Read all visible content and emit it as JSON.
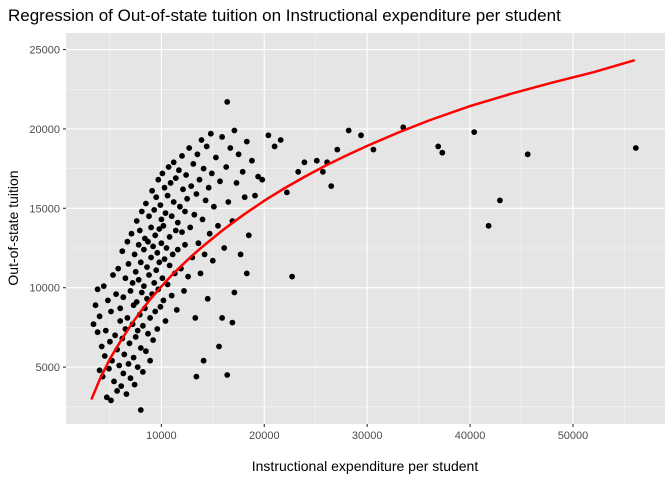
{
  "chart_data": {
    "type": "scatter",
    "title": "Regression of Out-of-state tuition on Instructional expenditure per student",
    "xlabel": "Instructional expenditure per student",
    "ylabel": "Out-of-state tuition",
    "xlim": [
      731,
      58941
    ],
    "ylim": [
      1416,
      26041
    ],
    "x_ticks": [
      10000,
      20000,
      30000,
      40000,
      50000
    ],
    "x_tick_labels": [
      "10000",
      "20000",
      "30000",
      "40000",
      "50000"
    ],
    "y_ticks": [
      5000,
      10000,
      15000,
      20000,
      25000
    ],
    "y_tick_labels": [
      "5000",
      "10000",
      "15000",
      "20000",
      "25000"
    ],
    "grid": true,
    "legend": "none",
    "colors": {
      "panel": "#e5e5e5",
      "grid_major": "#ffffff",
      "points": "#000000",
      "fit_line": "#ff0000"
    },
    "fit_line": {
      "x": [
        3200,
        4000,
        5000,
        6000,
        7000,
        8000,
        9000,
        10000,
        11000,
        12000,
        13000,
        14000,
        16000,
        18000,
        20000,
        22000,
        24000,
        26000,
        28000,
        30000,
        33000,
        36000,
        40000,
        44000,
        48000,
        52000,
        56000
      ],
      "y": [
        2960,
        4200,
        5520,
        6590,
        7610,
        8520,
        9330,
        10080,
        10780,
        11420,
        12020,
        12590,
        13640,
        14600,
        15480,
        16280,
        17010,
        17700,
        18330,
        18930,
        19770,
        20530,
        21440,
        22220,
        22920,
        23570,
        24330
      ]
    },
    "series": [
      {
        "points": [
          [
            3400,
            7700
          ],
          [
            3600,
            8900
          ],
          [
            3800,
            7200
          ],
          [
            3800,
            9900
          ],
          [
            4000,
            4800
          ],
          [
            4000,
            8200
          ],
          [
            4200,
            6300
          ],
          [
            4300,
            4400
          ],
          [
            4400,
            10100
          ],
          [
            4500,
            5700
          ],
          [
            4600,
            7300
          ],
          [
            4700,
            3100
          ],
          [
            4800,
            9200
          ],
          [
            4900,
            4900
          ],
          [
            5000,
            6600
          ],
          [
            5100,
            2900
          ],
          [
            5100,
            8500
          ],
          [
            5200,
            5400
          ],
          [
            5300,
            10800
          ],
          [
            5400,
            4100
          ],
          [
            5500,
            7000
          ],
          [
            5600,
            9600
          ],
          [
            5700,
            3500
          ],
          [
            5700,
            6100
          ],
          [
            5800,
            11200
          ],
          [
            5900,
            5100
          ],
          [
            6000,
            7900
          ],
          [
            6000,
            8700
          ],
          [
            6100,
            3800
          ],
          [
            6200,
            6800
          ],
          [
            6200,
            12300
          ],
          [
            6300,
            4600
          ],
          [
            6300,
            9400
          ],
          [
            6400,
            5800
          ],
          [
            6500,
            10600
          ],
          [
            6500,
            7400
          ],
          [
            6600,
            3300
          ],
          [
            6700,
            8100
          ],
          [
            6700,
            12900
          ],
          [
            6800,
            5200
          ],
          [
            6800,
            11500
          ],
          [
            6900,
            6500
          ],
          [
            7000,
            9800
          ],
          [
            7000,
            4300
          ],
          [
            7100,
            13400
          ],
          [
            7200,
            7700
          ],
          [
            7200,
            10300
          ],
          [
            7300,
            5600
          ],
          [
            7300,
            8900
          ],
          [
            7400,
            12100
          ],
          [
            7400,
            3900
          ],
          [
            7500,
            6900
          ],
          [
            7500,
            11000
          ],
          [
            7600,
            14200
          ],
          [
            7600,
            9100
          ],
          [
            7700,
            5000
          ],
          [
            7700,
            7300
          ],
          [
            7800,
            12700
          ],
          [
            7800,
            10500
          ],
          [
            7900,
            8300
          ],
          [
            7900,
            13600
          ],
          [
            8000,
            6200
          ],
          [
            8000,
            2300
          ],
          [
            8000,
            11600
          ],
          [
            8100,
            9700
          ],
          [
            8100,
            14800
          ],
          [
            8200,
            7600
          ],
          [
            8200,
            4700
          ],
          [
            8300,
            12400
          ],
          [
            8300,
            10100
          ],
          [
            8400,
            8700
          ],
          [
            8400,
            13100
          ],
          [
            8500,
            6000
          ],
          [
            8500,
            15300
          ],
          [
            8600,
            11300
          ],
          [
            8600,
            9300
          ],
          [
            8700,
            7100
          ],
          [
            8700,
            12900
          ],
          [
            8800,
            10800
          ],
          [
            8800,
            14500
          ],
          [
            8900,
            5400
          ],
          [
            8900,
            8100
          ],
          [
            9000,
            13800
          ],
          [
            9000,
            11900
          ],
          [
            9100,
            9600
          ],
          [
            9100,
            16100
          ],
          [
            9200,
            6700
          ],
          [
            9200,
            12600
          ],
          [
            9300,
            10300
          ],
          [
            9300,
            14900
          ],
          [
            9400,
            8500
          ],
          [
            9400,
            13300
          ],
          [
            9500,
            11100
          ],
          [
            9500,
            15700
          ],
          [
            9600,
            7400
          ],
          [
            9600,
            12200
          ],
          [
            9700,
            9900
          ],
          [
            9700,
            16800
          ],
          [
            9800,
            13700
          ],
          [
            9800,
            11600
          ],
          [
            9900,
            8800
          ],
          [
            9900,
            15200
          ],
          [
            10000,
            12800
          ],
          [
            10000,
            14300
          ],
          [
            10100,
            10600
          ],
          [
            10100,
            17200
          ],
          [
            10200,
            9200
          ],
          [
            10200,
            13900
          ],
          [
            10300,
            11800
          ],
          [
            10300,
            16300
          ],
          [
            10400,
            7900
          ],
          [
            10400,
            14700
          ],
          [
            10500,
            12500
          ],
          [
            10600,
            15800
          ],
          [
            10600,
            10200
          ],
          [
            10700,
            17600
          ],
          [
            10800,
            13200
          ],
          [
            10800,
            11400
          ],
          [
            10900,
            16600
          ],
          [
            11000,
            9500
          ],
          [
            11000,
            14500
          ],
          [
            11100,
            12100
          ],
          [
            11200,
            17900
          ],
          [
            11200,
            15400
          ],
          [
            11300,
            10900
          ],
          [
            11400,
            13600
          ],
          [
            11400,
            16900
          ],
          [
            11500,
            8600
          ],
          [
            11600,
            14100
          ],
          [
            11600,
            12400
          ],
          [
            11700,
            17400
          ],
          [
            11800,
            15100
          ],
          [
            11900,
            11200
          ],
          [
            12000,
            13500
          ],
          [
            12000,
            18300
          ],
          [
            12100,
            16200
          ],
          [
            12200,
            9800
          ],
          [
            12300,
            14800
          ],
          [
            12300,
            12700
          ],
          [
            12400,
            17100
          ],
          [
            12500,
            15600
          ],
          [
            12600,
            10700
          ],
          [
            12700,
            18800
          ],
          [
            12800,
            13800
          ],
          [
            12900,
            16400
          ],
          [
            13000,
            11900
          ],
          [
            13100,
            17800
          ],
          [
            13200,
            14600
          ],
          [
            13300,
            8100
          ],
          [
            13400,
            15900
          ],
          [
            13500,
            18400
          ],
          [
            13600,
            12800
          ],
          [
            13700,
            16800
          ],
          [
            13800,
            10900
          ],
          [
            13900,
            19300
          ],
          [
            14000,
            14300
          ],
          [
            14100,
            17500
          ],
          [
            14200,
            12100
          ],
          [
            14300,
            15500
          ],
          [
            14400,
            18900
          ],
          [
            14500,
            9300
          ],
          [
            14600,
            16300
          ],
          [
            14700,
            13400
          ],
          [
            14800,
            19700
          ],
          [
            14900,
            17200
          ],
          [
            15000,
            11700
          ],
          [
            15100,
            15100
          ],
          [
            15300,
            18200
          ],
          [
            15500,
            13900
          ],
          [
            15700,
            16700
          ],
          [
            15900,
            19500
          ],
          [
            16100,
            12500
          ],
          [
            16300,
            17600
          ],
          [
            16400,
            21700
          ],
          [
            16500,
            15400
          ],
          [
            16700,
            18800
          ],
          [
            16900,
            14200
          ],
          [
            17100,
            19900
          ],
          [
            17300,
            16600
          ],
          [
            17500,
            18400
          ],
          [
            17700,
            12100
          ],
          [
            17900,
            17300
          ],
          [
            18100,
            15700
          ],
          [
            18300,
            19200
          ],
          [
            18500,
            13300
          ],
          [
            18800,
            18000
          ],
          [
            19100,
            15800
          ],
          [
            19400,
            17000
          ],
          [
            16400,
            4500
          ],
          [
            15600,
            6300
          ],
          [
            14100,
            5400
          ],
          [
            13400,
            4400
          ],
          [
            15900,
            8100
          ],
          [
            17100,
            9700
          ],
          [
            18300,
            10900
          ],
          [
            16900,
            7800
          ],
          [
            19800,
            16800
          ],
          [
            20400,
            19600
          ],
          [
            21000,
            18900
          ],
          [
            21600,
            19300
          ],
          [
            22200,
            16000
          ],
          [
            22700,
            10700
          ],
          [
            23300,
            17300
          ],
          [
            23900,
            17900
          ],
          [
            25100,
            18000
          ],
          [
            25700,
            17300
          ],
          [
            26100,
            17900
          ],
          [
            26500,
            16400
          ],
          [
            27100,
            18700
          ],
          [
            28200,
            19900
          ],
          [
            29400,
            19600
          ],
          [
            30600,
            18700
          ],
          [
            33500,
            20100
          ],
          [
            36900,
            18900
          ],
          [
            37300,
            18500
          ],
          [
            40400,
            19800
          ],
          [
            41800,
            13900
          ],
          [
            42900,
            15500
          ],
          [
            45600,
            18400
          ],
          [
            56100,
            18800
          ]
        ]
      }
    ]
  }
}
